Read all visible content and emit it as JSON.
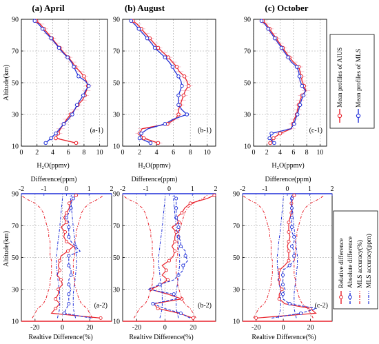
{
  "colors": {
    "aius": "#e8202a",
    "mls": "#1f2fd8",
    "grid": "#9a9a9a",
    "errorbar": "#f1b8c6",
    "axis_blue": "#1f2fd8",
    "axis_red": "#e8202a"
  },
  "titles": [
    "(a) April",
    "(b) August",
    "(c) October"
  ],
  "top_xlabel": "H₂O(ppmv)",
  "bottom_xlabel": "Realtive Difference(%)",
  "top2_xlabel": "Difference(ppm)",
  "ylabel": "Altitude(km)",
  "legend_top": {
    "items": [
      "Mean profiles of AIUS",
      "Mean profiles of MLS"
    ]
  },
  "legend_bottom": {
    "items": [
      "Relative difference",
      "Absolute difference",
      "MLS accuracy(%)",
      "MLS accuracy(ppm)"
    ]
  },
  "chart_data": [
    {
      "type": "line",
      "panel": "a-1",
      "title": "(a) April",
      "xlabel": "H₂O(ppmv)",
      "ylabel": "Altitude(km)",
      "xlim": [
        0,
        11
      ],
      "ylim": [
        10,
        90
      ],
      "grid": true,
      "xticks": [
        "0",
        "2",
        "4",
        "6",
        "8",
        "10"
      ],
      "yticks": [
        "10",
        "30",
        "50",
        "70",
        "90"
      ],
      "altitude": [
        12,
        15,
        18,
        21,
        24,
        27,
        30,
        33,
        36,
        39,
        42,
        45,
        48,
        51,
        54,
        57,
        60,
        63,
        66,
        69,
        72,
        75,
        78,
        81,
        84,
        87,
        89
      ],
      "series": [
        {
          "name": "Mean profiles of AIUS",
          "values": [
            7.0,
            4.4,
            4.7,
            5.0,
            5.4,
            5.8,
            6.3,
            6.8,
            7.2,
            7.8,
            8.1,
            8.3,
            8.5,
            8.3,
            8.0,
            7.5,
            6.9,
            6.5,
            6.0,
            5.4,
            4.9,
            4.4,
            3.9,
            3.4,
            2.9,
            2.4,
            1.9
          ]
        },
        {
          "name": "Mean profiles of MLS",
          "values": [
            3.1,
            3.8,
            4.4,
            4.9,
            5.4,
            6.0,
            6.5,
            6.8,
            7.1,
            7.5,
            7.9,
            8.2,
            8.6,
            8.2,
            7.3,
            7.0,
            6.7,
            6.4,
            5.9,
            5.3,
            4.8,
            4.3,
            3.8,
            3.2,
            2.7,
            2.2,
            1.7
          ]
        }
      ],
      "annotation": "(a-1)"
    },
    {
      "type": "line",
      "panel": "b-1",
      "title": "(b) August",
      "xlabel": "H₂O(ppmv)",
      "ylabel": "Altitude(km)",
      "xlim": [
        0,
        11
      ],
      "ylim": [
        10,
        90
      ],
      "grid": true,
      "xticks": [
        "0",
        "2",
        "4",
        "6",
        "8",
        "10"
      ],
      "yticks": [
        "10",
        "30",
        "50",
        "70",
        "90"
      ],
      "altitude": [
        12,
        15,
        18,
        21,
        24,
        27,
        30,
        33,
        36,
        39,
        42,
        45,
        48,
        51,
        54,
        57,
        60,
        63,
        66,
        69,
        72,
        75,
        78,
        81,
        84,
        87,
        89
      ],
      "series": [
        {
          "name": "Mean profiles of AIUS",
          "values": [
            4.2,
            2.5,
            2.0,
            2.3,
            5.3,
            6.2,
            6.6,
            6.6,
            6.8,
            7.0,
            7.2,
            7.4,
            7.8,
            7.6,
            7.3,
            6.7,
            6.4,
            5.9,
            5.4,
            4.8,
            4.2,
            3.7,
            3.2,
            2.7,
            2.2,
            1.7,
            1.2
          ]
        },
        {
          "name": "Mean profiles of MLS",
          "values": [
            3.3,
            2.0,
            2.2,
            3.0,
            5.0,
            6.0,
            7.6,
            7.0,
            6.6,
            6.6,
            6.6,
            6.8,
            7.0,
            6.9,
            6.6,
            6.2,
            5.9,
            5.5,
            5.0,
            4.4,
            3.8,
            3.4,
            2.9,
            2.4,
            1.9,
            1.4,
            1.0
          ]
        }
      ],
      "annotation": "(b-1)"
    },
    {
      "type": "line",
      "panel": "c-1",
      "title": "(c) October",
      "xlabel": "H₂O(ppmv)",
      "ylabel": "Altitude(km)",
      "xlim": [
        0,
        11
      ],
      "ylim": [
        10,
        90
      ],
      "grid": true,
      "xticks": [
        "0",
        "2",
        "4",
        "6",
        "8",
        "10"
      ],
      "yticks": [
        "10",
        "30",
        "50",
        "70",
        "90"
      ],
      "altitude": [
        12,
        15,
        18,
        21,
        24,
        27,
        30,
        33,
        36,
        39,
        42,
        45,
        48,
        51,
        54,
        57,
        60,
        63,
        66,
        69,
        72,
        75,
        78,
        81,
        84,
        87,
        89
      ],
      "series": [
        {
          "name": "Mean profiles of AIUS",
          "values": [
            2.5,
            3.0,
            4.0,
            5.7,
            5.9,
            6.1,
            6.5,
            6.6,
            6.8,
            7.0,
            7.3,
            7.9,
            7.6,
            7.3,
            7.2,
            7.0,
            6.8,
            6.0,
            5.4,
            4.9,
            4.4,
            3.9,
            3.4,
            2.9,
            2.4,
            1.9,
            1.4
          ]
        },
        {
          "name": "Mean profiles of MLS",
          "values": [
            3.1,
            2.4,
            2.7,
            5.6,
            6.1,
            6.3,
            6.6,
            6.8,
            7.0,
            7.2,
            7.5,
            7.8,
            7.3,
            7.0,
            6.9,
            6.8,
            6.5,
            5.7,
            5.2,
            4.7,
            4.2,
            3.7,
            3.2,
            2.7,
            2.2,
            1.7,
            1.2
          ]
        }
      ],
      "annotation": "(c-1)"
    },
    {
      "type": "line",
      "panel": "a-2",
      "xlabel": "Realtive Difference(%)",
      "x2label": "Difference(ppm)",
      "ylabel": "Altitude(km)",
      "xlim": [
        -30,
        36
      ],
      "x2lim": [
        -2,
        2
      ],
      "ylim": [
        10,
        90
      ],
      "grid": true,
      "xticks": [
        "-20",
        "0",
        "20"
      ],
      "x2ticks": [
        "-2",
        "-1",
        "0",
        "1",
        "2"
      ],
      "yticks": [
        "10",
        "30",
        "50",
        "70",
        "90"
      ],
      "altitude": [
        12,
        15,
        18,
        21,
        24,
        27,
        30,
        33,
        36,
        39,
        42,
        45,
        48,
        51,
        54,
        57,
        60,
        63,
        66,
        69,
        72,
        75,
        78,
        81,
        84,
        87,
        89
      ],
      "series": [
        {
          "name": "Relative difference",
          "axis": "bottom",
          "values": [
            28,
            -8,
            -5,
            -2,
            -5,
            -3,
            -3,
            0,
            -1,
            -4,
            -2,
            -3,
            -2,
            -1,
            4,
            8,
            3,
            1,
            2,
            -1,
            3,
            1,
            3,
            5,
            5,
            8,
            10
          ]
        },
        {
          "name": "Absolute difference",
          "axis": "top",
          "values": [
            1.1,
            -0.1,
            0.0,
            0.1,
            0.1,
            0.1,
            0.2,
            0.1,
            0.1,
            0.2,
            0.2,
            0.1,
            0.1,
            0.1,
            0.6,
            0.4,
            0.2,
            0.1,
            0.1,
            0.1,
            0.1,
            0.0,
            0.1,
            0.2,
            0.2,
            0.3,
            0.2
          ]
        },
        {
          "name": "MLS accuracy(%)",
          "axis": "bottom",
          "lower": [
            -22,
            -20,
            -18,
            -14,
            -12,
            -11,
            -10,
            -9,
            -9,
            -8,
            -8,
            -8,
            -8,
            -9,
            -9,
            -9,
            -9,
            -10,
            -10,
            -11,
            -12,
            -13,
            -14,
            -16,
            -20,
            -27,
            -30
          ],
          "upper": [
            22,
            20,
            18,
            14,
            12,
            11,
            10,
            9,
            9,
            8,
            8,
            8,
            8,
            9,
            9,
            9,
            9,
            10,
            10,
            11,
            12,
            13,
            14,
            16,
            20,
            27,
            30
          ]
        },
        {
          "name": "MLS accuracy(ppm)",
          "axis": "top",
          "lower": [
            -0.4,
            -0.35,
            -0.3,
            -0.3,
            -0.3,
            -0.3,
            -0.32,
            -0.35,
            -0.38,
            -0.4,
            -0.42,
            -0.45,
            -0.45,
            -0.45,
            -0.42,
            -0.4,
            -0.38,
            -0.35,
            -0.32,
            -0.3,
            -0.28,
            -0.26,
            -0.24,
            -0.22,
            -0.2,
            -0.18,
            -0.16
          ],
          "upper": [
            0.4,
            0.35,
            0.3,
            0.3,
            0.3,
            0.3,
            0.32,
            0.35,
            0.38,
            0.4,
            0.42,
            0.45,
            0.45,
            0.45,
            0.42,
            0.4,
            0.38,
            0.35,
            0.32,
            0.3,
            0.28,
            0.26,
            0.24,
            0.22,
            0.2,
            0.18,
            0.16
          ]
        }
      ],
      "annotation": "(a-2)"
    },
    {
      "type": "line",
      "panel": "b-2",
      "xlabel": "Realtive Difference(%)",
      "x2label": "Difference(ppm)",
      "ylabel": "Altitude(km)",
      "xlim": [
        -30,
        36
      ],
      "x2lim": [
        -2,
        2
      ],
      "ylim": [
        10,
        90
      ],
      "grid": true,
      "xticks": [
        "-20",
        "0",
        "20"
      ],
      "x2ticks": [
        "-2",
        "-1",
        "0",
        "1",
        "2"
      ],
      "yticks": [
        "10",
        "30",
        "50",
        "70",
        "90"
      ],
      "altitude": [
        12,
        15,
        18,
        21,
        24,
        27,
        30,
        33,
        36,
        39,
        42,
        45,
        48,
        51,
        54,
        57,
        60,
        63,
        66,
        69,
        72,
        75,
        78,
        81,
        84,
        87,
        89
      ],
      "series": [
        {
          "name": "Relative difference",
          "axis": "bottom",
          "values": [
            20,
            10,
            -5,
            -8,
            12,
            2,
            -10,
            -3,
            2,
            -2,
            1,
            -2,
            3,
            6,
            7,
            5,
            7,
            7,
            8,
            5,
            10,
            8,
            12,
            14,
            18,
            30,
            35
          ]
        },
        {
          "name": "Absolute difference",
          "axis": "top",
          "values": [
            0.9,
            0.5,
            -0.2,
            -0.7,
            0.3,
            0.2,
            -0.9,
            -0.4,
            0.2,
            0.4,
            0.6,
            0.6,
            0.8,
            0.7,
            0.7,
            0.5,
            0.5,
            0.4,
            0.4,
            0.4,
            0.4,
            0.3,
            0.3,
            0.3,
            0.3,
            0.3,
            0.2
          ]
        },
        {
          "name": "MLS accuracy(%)",
          "axis": "bottom",
          "lower": [
            -22,
            -20,
            -18,
            -14,
            -12,
            -11,
            -10,
            -9,
            -9,
            -8,
            -8,
            -8,
            -8,
            -9,
            -9,
            -9,
            -9,
            -10,
            -10,
            -11,
            -12,
            -13,
            -14,
            -16,
            -20,
            -27,
            -30
          ],
          "upper": [
            22,
            20,
            18,
            14,
            12,
            11,
            10,
            9,
            9,
            8,
            8,
            8,
            8,
            9,
            9,
            9,
            9,
            10,
            10,
            11,
            12,
            13,
            14,
            16,
            20,
            27,
            30
          ]
        },
        {
          "name": "MLS accuracy(ppm)",
          "axis": "top",
          "lower": [
            -0.4,
            -0.35,
            -0.3,
            -0.3,
            -0.3,
            -0.3,
            -0.32,
            -0.35,
            -0.38,
            -0.4,
            -0.42,
            -0.45,
            -0.45,
            -0.45,
            -0.42,
            -0.4,
            -0.38,
            -0.35,
            -0.32,
            -0.3,
            -0.28,
            -0.26,
            -0.24,
            -0.22,
            -0.2,
            -0.18,
            -0.16
          ],
          "upper": [
            0.4,
            0.35,
            0.3,
            0.3,
            0.3,
            0.3,
            0.32,
            0.35,
            0.38,
            0.4,
            0.42,
            0.45,
            0.45,
            0.45,
            0.42,
            0.4,
            0.38,
            0.35,
            0.32,
            0.3,
            0.28,
            0.26,
            0.24,
            0.22,
            0.2,
            0.18,
            0.16
          ]
        }
      ],
      "annotation": "(b-2)"
    },
    {
      "type": "line",
      "panel": "c-2",
      "xlabel": "Realtive Difference(%)",
      "x2label": "Difference(ppm)",
      "ylabel": "Altitude(km)",
      "xlim": [
        -30,
        36
      ],
      "x2lim": [
        -2,
        2
      ],
      "ylim": [
        10,
        90
      ],
      "grid": true,
      "xticks": [
        "-20",
        "0",
        "20"
      ],
      "x2ticks": [
        "-2",
        "-1",
        "0",
        "1",
        "2"
      ],
      "yticks": [
        "10",
        "30",
        "50",
        "70",
        "90"
      ],
      "altitude": [
        12,
        15,
        18,
        21,
        24,
        27,
        30,
        33,
        36,
        39,
        42,
        45,
        48,
        51,
        54,
        57,
        60,
        63,
        66,
        69,
        72,
        75,
        78,
        81,
        84,
        87,
        89
      ],
      "series": [
        {
          "name": "Relative difference",
          "axis": "bottom",
          "values": [
            -20,
            24,
            20,
            1,
            -3,
            -3,
            -1,
            -3,
            -3,
            -3,
            -3,
            1,
            4,
            4,
            4,
            3,
            4,
            5,
            4,
            4,
            4,
            5,
            6,
            6,
            6,
            7,
            8
          ]
        },
        {
          "name": "Absolute difference",
          "axis": "top",
          "values": [
            -0.7,
            0.6,
            1.3,
            0.1,
            -0.2,
            -0.2,
            -0.1,
            -0.2,
            -0.2,
            -0.2,
            -0.2,
            0.1,
            0.3,
            0.3,
            0.3,
            0.2,
            0.3,
            0.3,
            0.2,
            0.2,
            0.2,
            0.2,
            0.2,
            0.2,
            0.2,
            0.2,
            0.2
          ]
        },
        {
          "name": "MLS accuracy(%)",
          "axis": "bottom",
          "lower": [
            -22,
            -20,
            -18,
            -14,
            -12,
            -11,
            -10,
            -9,
            -9,
            -8,
            -8,
            -8,
            -8,
            -9,
            -9,
            -9,
            -9,
            -10,
            -10,
            -11,
            -12,
            -13,
            -14,
            -16,
            -20,
            -27,
            -30
          ],
          "upper": [
            22,
            20,
            18,
            14,
            12,
            11,
            10,
            9,
            9,
            8,
            8,
            8,
            8,
            9,
            9,
            9,
            9,
            10,
            10,
            11,
            12,
            13,
            14,
            16,
            20,
            27,
            30
          ]
        },
        {
          "name": "MLS accuracy(ppm)",
          "axis": "top",
          "lower": [
            -0.4,
            -0.35,
            -0.3,
            -0.3,
            -0.3,
            -0.3,
            -0.32,
            -0.35,
            -0.38,
            -0.4,
            -0.42,
            -0.45,
            -0.45,
            -0.45,
            -0.42,
            -0.4,
            -0.38,
            -0.35,
            -0.32,
            -0.3,
            -0.28,
            -0.26,
            -0.24,
            -0.22,
            -0.2,
            -0.18,
            -0.16
          ],
          "upper": [
            0.4,
            0.35,
            0.3,
            0.3,
            0.3,
            0.3,
            0.32,
            0.35,
            0.38,
            0.4,
            0.42,
            0.45,
            0.45,
            0.45,
            0.42,
            0.4,
            0.38,
            0.35,
            0.32,
            0.3,
            0.28,
            0.26,
            0.24,
            0.22,
            0.2,
            0.18,
            0.16
          ]
        }
      ],
      "annotation": "(c-2)"
    }
  ]
}
